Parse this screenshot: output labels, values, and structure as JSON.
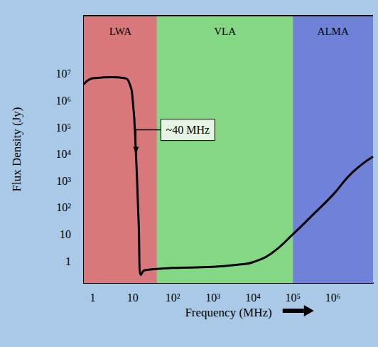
{
  "chart_data": {
    "type": "line",
    "xlabel": "Frequency (MHz)",
    "ylabel": "Flux Density (Jy)",
    "log": true,
    "grid": false,
    "color": "#000000",
    "x": [
      0.6,
      0.8,
      1.2,
      3,
      6,
      8,
      10,
      12,
      14,
      16,
      20,
      40,
      100,
      1000,
      5000,
      10000,
      30000,
      100000,
      300000,
      1000000,
      3000000,
      10000000
    ],
    "values": [
      4000000,
      6000000,
      7000000,
      7500000,
      7000000,
      5000000,
      1000000,
      10000,
      30,
      0.3,
      0.45,
      0.5,
      0.55,
      0.6,
      0.75,
      0.9,
      2,
      10,
      50,
      300,
      2000,
      8000
    ],
    "xlim": [
      0.6,
      10000000
    ],
    "ylim": [
      0.15,
      1500000000
    ],
    "xticks": [
      1,
      10,
      {
        "value": 100,
        "label": "10²"
      },
      {
        "value": 1000,
        "label": "10³"
      },
      {
        "value": 10000,
        "label": "10⁴"
      },
      {
        "value": 100000,
        "label": "10⁵"
      },
      {
        "value": 1000000,
        "label": "10⁶"
      }
    ],
    "yticks": [
      1,
      10,
      {
        "value": 100,
        "label": "10²"
      },
      {
        "value": 1000,
        "label": "10³"
      },
      {
        "value": 10000,
        "label": "10⁴"
      },
      {
        "value": 100000,
        "label": "10⁵"
      },
      {
        "value": 1000000,
        "label": "10⁶"
      },
      {
        "value": 10000000,
        "label": "10⁷"
      }
    ],
    "bands": [
      {
        "label": "LWA",
        "range": [
          0.6,
          40
        ],
        "color": "#d9787a"
      },
      {
        "label": "VLA",
        "range": [
          40,
          100000
        ],
        "color": "#84d884"
      },
      {
        "label": "ALMA",
        "range": [
          100000,
          10000000
        ],
        "color": "#6f82d8"
      }
    ],
    "annotations": [
      {
        "text": "~40 MHz",
        "x": 12,
        "y": 10000
      }
    ]
  }
}
